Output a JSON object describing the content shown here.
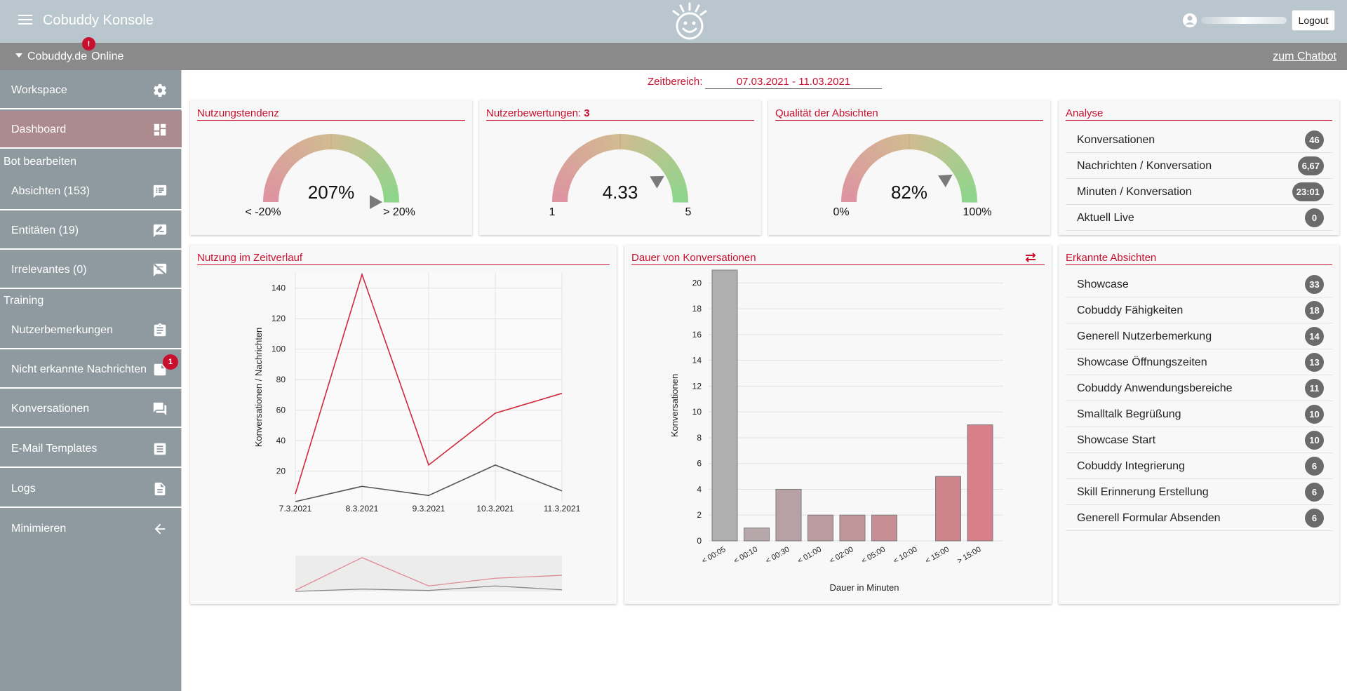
{
  "header": {
    "title": "Cobuddy Konsole",
    "logout_label": "Logout",
    "bot_name": "Cobuddy.de",
    "bot_status": "Online",
    "alert_badge": "!",
    "chatbot_link": "zum Chatbot"
  },
  "sidebar": {
    "items": [
      {
        "label": "Workspace",
        "icon": "gear-icon"
      },
      {
        "label": "Dashboard",
        "icon": "dashboard-icon"
      },
      {
        "label": "Absichten (153)",
        "icon": "intents-icon"
      },
      {
        "label": "Entitäten (19)",
        "icon": "entities-icon"
      },
      {
        "label": "Irrelevantes (0)",
        "icon": "irrelevant-icon"
      },
      {
        "label": "Nutzerbemerkungen",
        "icon": "clipboard-icon"
      },
      {
        "label": "Nicht erkannte Nachrichten",
        "icon": "note-icon",
        "badge": "1"
      },
      {
        "label": "Konversationen",
        "icon": "chat-icon"
      },
      {
        "label": "E-Mail Templates",
        "icon": "template-icon"
      },
      {
        "label": "Logs",
        "icon": "file-icon"
      },
      {
        "label": "Minimieren",
        "icon": "arrow-left-icon"
      }
    ],
    "section_bot": "Bot bearbeiten",
    "section_training": "Training"
  },
  "range": {
    "label": "Zeitbereich:",
    "value": "07.03.2021 - 11.03.2021"
  },
  "gauges": [
    {
      "title": "Nutzungstendenz",
      "value": "207%",
      "min": "< -20%",
      "max": "> 20%",
      "level": 1.0
    },
    {
      "title": "Nutzerbewertungen: ",
      "title_count": "3",
      "value": "4.33",
      "min": "1",
      "max": "5",
      "level": 0.83
    },
    {
      "title": "Qualität der Absichten",
      "value": "82%",
      "min": "0%",
      "max": "100%",
      "level": 0.82
    }
  ],
  "analyse": {
    "title": "Analyse",
    "rows": [
      {
        "label": "Konversationen",
        "value": "46"
      },
      {
        "label": "Nachrichten / Konversation",
        "value": "6,67"
      },
      {
        "label": "Minuten / Konversation",
        "value": "23:01"
      },
      {
        "label": "Aktuell Live",
        "value": "0"
      }
    ]
  },
  "intents": {
    "title": "Erkannte Absichten",
    "rows": [
      {
        "label": "Showcase",
        "value": "33"
      },
      {
        "label": "Cobuddy Fähigkeiten",
        "value": "18"
      },
      {
        "label": "Generell  Nutzerbemerkung",
        "value": "14"
      },
      {
        "label": "Showcase  Öffnungszeiten",
        "value": "13"
      },
      {
        "label": "Cobuddy Anwendungsbereiche",
        "value": "11"
      },
      {
        "label": "Smalltalk Begrüßung",
        "value": "10"
      },
      {
        "label": "Showcase Start",
        "value": "10"
      },
      {
        "label": "Cobuddy Integrierung",
        "value": "6"
      },
      {
        "label": "Skill Erinnerung Erstellung",
        "value": "6"
      },
      {
        "label": "Generell Formular Absenden",
        "value": "6"
      }
    ]
  },
  "colors": {
    "accent": "#c8102e",
    "topbar": "#b9c6cd",
    "sidebar": "#8f9aa0",
    "sidebar_active": "#ac8a8d",
    "line_red": "#d0283a",
    "line_grey": "#555555"
  },
  "chart_data": [
    {
      "type": "line",
      "title": "Nutzung im Zeitverlauf",
      "ylabel": "Konversationen / Nachrichten",
      "xlabel": "",
      "categories": [
        "7.3.2021",
        "8.3.2021",
        "9.3.2021",
        "10.3.2021",
        "11.3.2021"
      ],
      "ylim": [
        0,
        150
      ],
      "yticks": [
        20,
        40,
        60,
        80,
        100,
        120,
        140
      ],
      "series": [
        {
          "values": [
            5,
            149,
            24,
            58,
            71
          ],
          "color": "#d0283a"
        },
        {
          "values": [
            0,
            10,
            4,
            24,
            7
          ],
          "color": "#555555"
        }
      ],
      "grid": true
    },
    {
      "type": "bar",
      "title": "Dauer von Konversationen",
      "xlabel": "Dauer in Minuten",
      "ylabel": "Konversationen",
      "categories": [
        "< 00:05",
        "< 00:10",
        "< 00:30",
        "< 01:00",
        "< 02:00",
        "< 05:00",
        "< 10:00",
        "< 15:00",
        "> 15:00"
      ],
      "values": [
        21,
        1,
        4,
        2,
        2,
        2,
        0,
        5,
        9
      ],
      "ylim": [
        0,
        21
      ],
      "yticks": [
        0,
        2,
        4,
        6,
        8,
        10,
        12,
        14,
        16,
        18,
        20
      ],
      "colors": [
        "#b0b0b0",
        "#b6a8aa",
        "#b8a1a4",
        "#bc9b9e",
        "#c09599",
        "#c58f94",
        "#c98a90",
        "#cd848b",
        "#d97f8a"
      ],
      "grid": true
    }
  ]
}
